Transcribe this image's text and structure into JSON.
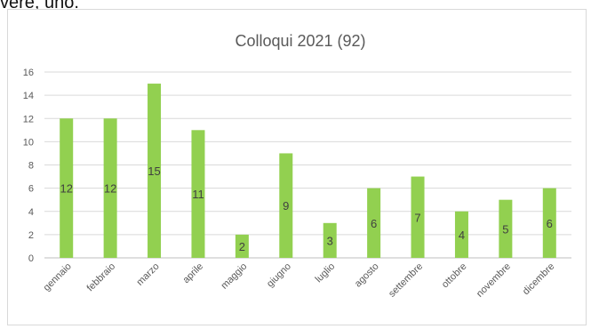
{
  "page": {
    "top_fragment": "vere, uno."
  },
  "chart_data": {
    "type": "bar",
    "title": "Colloqui 2021 (92)",
    "categories": [
      "gennaio",
      "febbraio",
      "marzo",
      "aprile",
      "maggio",
      "giugno",
      "luglio",
      "agosto",
      "settembre",
      "ottobre",
      "novembre",
      "dicembre"
    ],
    "values": [
      12,
      12,
      15,
      11,
      2,
      9,
      3,
      6,
      7,
      4,
      5,
      6
    ],
    "ylim": [
      0,
      16
    ],
    "yticks": [
      0,
      2,
      4,
      6,
      8,
      10,
      12,
      14,
      16
    ],
    "grid": true,
    "legend": "none",
    "bar_color": "#92d050",
    "data_labels": true
  }
}
